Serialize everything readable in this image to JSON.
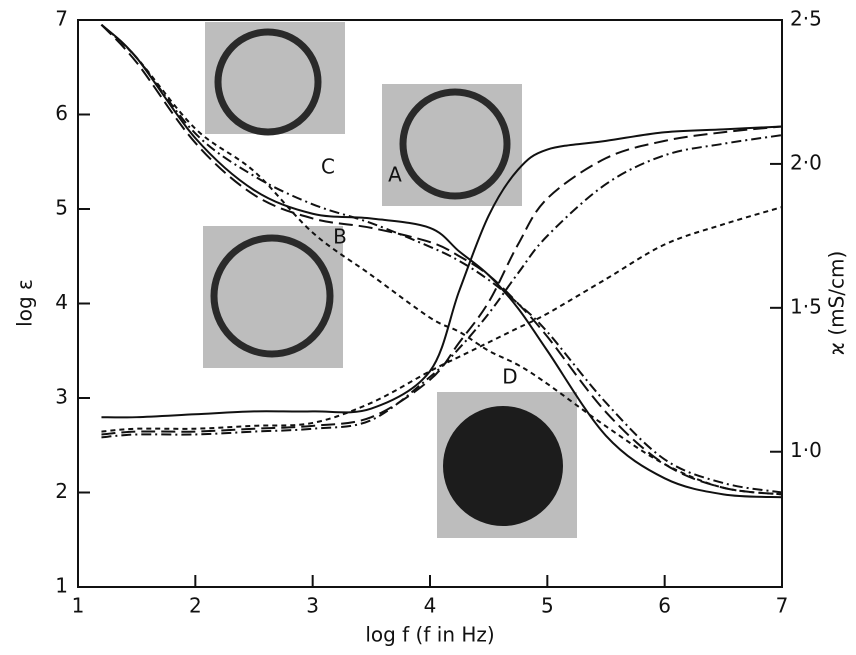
{
  "chart_data": {
    "type": "line",
    "xlabel": "log f (f in Hz)",
    "ylabel": "log ε",
    "y2label": "ϰ (mS/cm)",
    "x": [
      1.2,
      1.5,
      2,
      2.5,
      3,
      3.5,
      4,
      4.25,
      4.5,
      4.75,
      5,
      5.5,
      6,
      6.5,
      7
    ],
    "xlim": [
      1,
      7
    ],
    "xticks": [
      1,
      2,
      3,
      4,
      5,
      6,
      7
    ],
    "ylim": [
      1,
      7
    ],
    "yticks": [
      1,
      2,
      3,
      4,
      5,
      6,
      7
    ],
    "y2lim": [
      0.53,
      2.5
    ],
    "y2ticks": [
      {
        "value": 1.0,
        "label": "1·0"
      },
      {
        "value": 1.5,
        "label": "1·5"
      },
      {
        "value": 2.0,
        "label": "2·0"
      },
      {
        "value": 2.5,
        "label": "2·5"
      }
    ],
    "series": [
      {
        "name": "A",
        "color": "#111111",
        "dash": "none",
        "values": [
          6.95,
          6.6,
          5.75,
          5.2,
          4.95,
          4.9,
          4.8,
          4.55,
          4.3,
          3.95,
          3.5,
          2.6,
          2.15,
          1.98,
          1.95
        ]
      },
      {
        "name": "B",
        "color": "#111111",
        "dash": "14 6",
        "values": [
          6.95,
          6.55,
          5.7,
          5.15,
          4.9,
          4.8,
          4.65,
          4.5,
          4.3,
          4.0,
          3.65,
          2.85,
          2.3,
          2.05,
          1.98
        ]
      },
      {
        "name": "C",
        "color": "#111111",
        "dash": "10 4 2 4",
        "values": [
          6.95,
          6.6,
          5.8,
          5.35,
          5.05,
          4.85,
          4.6,
          4.45,
          4.25,
          4.0,
          3.7,
          2.95,
          2.35,
          2.1,
          2.0
        ]
      },
      {
        "name": "D",
        "color": "#111111",
        "dash": "5 4",
        "values": [
          6.95,
          6.6,
          5.85,
          5.4,
          4.75,
          4.3,
          3.85,
          3.7,
          3.5,
          3.35,
          3.15,
          2.7,
          2.3,
          2.05,
          1.98
        ]
      },
      {
        "axis": "y2",
        "color": "#111111",
        "dash": "none",
        "values": [
          1.12,
          1.12,
          1.13,
          1.14,
          1.14,
          1.15,
          1.28,
          1.56,
          1.82,
          1.98,
          2.05,
          2.08,
          2.11,
          2.12,
          2.13
        ]
      },
      {
        "axis": "y2",
        "color": "#111111",
        "dash": "14 6",
        "values": [
          1.06,
          1.07,
          1.07,
          1.08,
          1.09,
          1.12,
          1.25,
          1.38,
          1.52,
          1.72,
          1.88,
          2.02,
          2.08,
          2.11,
          2.13
        ]
      },
      {
        "axis": "y2",
        "color": "#111111",
        "dash": "10 4 2 4",
        "values": [
          1.05,
          1.06,
          1.06,
          1.07,
          1.08,
          1.11,
          1.26,
          1.36,
          1.48,
          1.62,
          1.75,
          1.93,
          2.03,
          2.07,
          2.1
        ]
      },
      {
        "axis": "y2",
        "color": "#111111",
        "dash": "5 4",
        "values": [
          1.07,
          1.08,
          1.08,
          1.09,
          1.1,
          1.17,
          1.28,
          1.33,
          1.38,
          1.43,
          1.48,
          1.6,
          1.72,
          1.79,
          1.85
        ]
      }
    ]
  }
}
